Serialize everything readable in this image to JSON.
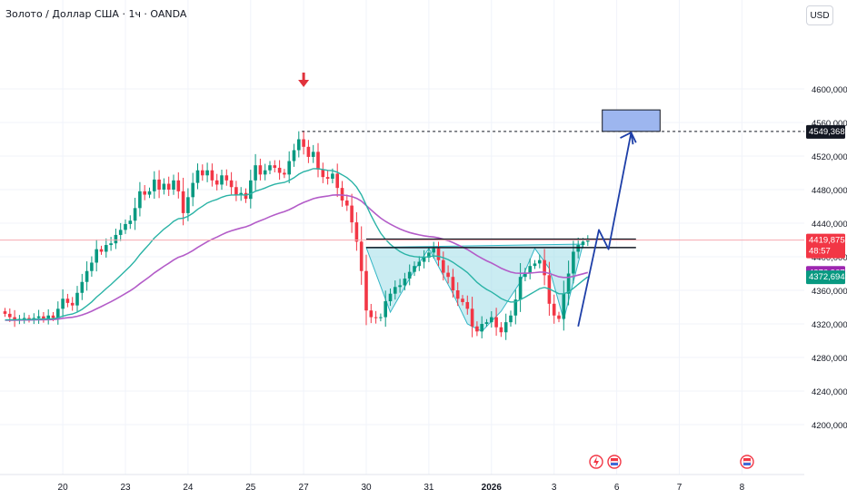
{
  "header": {
    "title": "Золото / Доллар США · 1ч · OANDA",
    "currency": "USD"
  },
  "colors": {
    "up": "#089981",
    "down": "#f23645",
    "ema_fast": "#2ab3a6",
    "ema_slow": "#b35cc8",
    "zone": "#9db6ef",
    "projection": "#1e3fa8",
    "pattern_fill": "#9fdde8",
    "marker": "#e0323c"
  },
  "badges": {
    "current": {
      "price": "4419,875",
      "timer": "48:57"
    },
    "ema_slow": "4376,967",
    "ema_fast": "4372,694",
    "target": "4549,368"
  },
  "chart_data": {
    "type": "candlestick",
    "title": "Золото / Доллар США · 1ч · OANDA",
    "ylim": [
      4185,
      4630
    ],
    "y_ticks": [
      4200,
      4240,
      4280,
      4320,
      4360,
      4400,
      4440,
      4480,
      4520,
      4560,
      4600
    ],
    "y_tick_labels": [
      "4200,000",
      "4240,000",
      "4280,000",
      "4320,000",
      "4360,000",
      "4400,000",
      "4440,000",
      "4480,000",
      "4520,000",
      "4560,000",
      "4600,000"
    ],
    "x_ticks": [
      {
        "label": "20",
        "bar": 12
      },
      {
        "label": "23",
        "bar": 25
      },
      {
        "label": "24",
        "bar": 38
      },
      {
        "label": "25",
        "bar": 51
      },
      {
        "label": "27",
        "bar": 62
      },
      {
        "label": "30",
        "bar": 75
      },
      {
        "label": "31",
        "bar": 88
      },
      {
        "label": "2026",
        "bar": 101
      },
      {
        "label": "3",
        "bar": 114
      },
      {
        "label": "6",
        "bar": 127
      },
      {
        "label": "7",
        "bar": 140
      },
      {
        "label": "8",
        "bar": 153
      }
    ],
    "bar_count": 122,
    "closes": [
      4332,
      4328,
      4324,
      4326,
      4327,
      4325,
      4327,
      4329,
      4326,
      4330,
      4327,
      4338,
      4350,
      4345,
      4342,
      4357,
      4370,
      4383,
      4393,
      4409,
      4406,
      4414,
      4416,
      4426,
      4432,
      4439,
      4443,
      4458,
      4478,
      4474,
      4478,
      4492,
      4480,
      4487,
      4480,
      4491,
      4478,
      4452,
      4471,
      4488,
      4503,
      4497,
      4503,
      4491,
      4486,
      4497,
      4491,
      4483,
      4473,
      4476,
      4469,
      4491,
      4509,
      4498,
      4503,
      4509,
      4506,
      4500,
      4498,
      4514,
      4527,
      4540,
      4531,
      4519,
      4525,
      4504,
      4495,
      4493,
      4499,
      4482,
      4467,
      4461,
      4441,
      4418,
      4383,
      4336,
      4328,
      4327,
      4328,
      4347,
      4356,
      4364,
      4366,
      4374,
      4382,
      4389,
      4394,
      4399,
      4405,
      4410,
      4396,
      4381,
      4376,
      4360,
      4350,
      4346,
      4338,
      4317,
      4311,
      4320,
      4322,
      4328,
      4316,
      4310,
      4322,
      4330,
      4349,
      4376,
      4381,
      4389,
      4392,
      4396,
      4378,
      4344,
      4330,
      4326,
      4356,
      4380,
      4406,
      4414,
      4418,
      4420
    ],
    "series": [
      {
        "name": "EMA fast",
        "values": []
      },
      {
        "name": "EMA slow",
        "values": []
      }
    ],
    "neckline": {
      "upper": 4421,
      "lower": 4411,
      "from_bar": 75,
      "to_bar": 131
    },
    "breakout_marker_bar": 62,
    "target_price": 4549.368,
    "target_zone": {
      "low": 4549.368,
      "high": 4575,
      "from_bar": 124,
      "to_bar": 136
    },
    "projection_path": [
      {
        "bar": 119,
        "price": 4317
      },
      {
        "bar": 123.3,
        "price": 4432
      },
      {
        "bar": 125.3,
        "price": 4409
      },
      {
        "bar": 130,
        "price": 4548
      },
      {
        "bar": 131,
        "price": 4536
      }
    ],
    "current_price": 4419.875
  }
}
